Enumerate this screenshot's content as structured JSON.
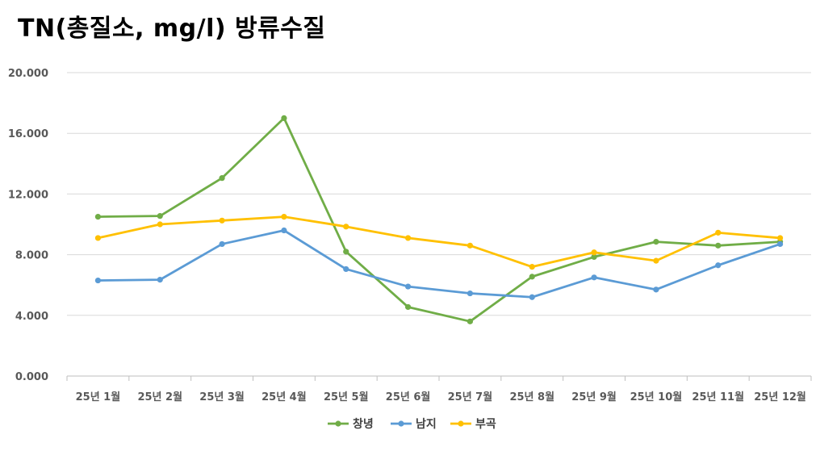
{
  "chart_data": {
    "type": "line",
    "title": "TN(총질소, mg/l) 방류수질",
    "categories": [
      "25년 1월",
      "25년 2월",
      "25년 3월",
      "25년 4월",
      "25년 5월",
      "25년 6월",
      "25년 7월",
      "25년 8월",
      "25년 9월",
      "25년 10월",
      "25년 11월",
      "25년 12월"
    ],
    "y_ticks": [
      "0.000",
      "4.000",
      "8.000",
      "12.000",
      "16.000",
      "20.000"
    ],
    "ylim": [
      0,
      20
    ],
    "grid": true,
    "legend_position": "bottom",
    "series": [
      {
        "name": "창녕",
        "color": "#70AD47",
        "values": [
          10.5,
          10.55,
          13.05,
          17.0,
          8.2,
          4.55,
          3.6,
          6.55,
          7.85,
          8.85,
          8.6,
          8.85
        ]
      },
      {
        "name": "남지",
        "color": "#5B9BD5",
        "values": [
          6.3,
          6.35,
          8.7,
          9.6,
          7.05,
          5.9,
          5.45,
          5.2,
          6.5,
          5.7,
          7.3,
          8.7
        ]
      },
      {
        "name": "부곡",
        "color": "#FFC000",
        "values": [
          9.1,
          10.0,
          10.25,
          10.5,
          9.85,
          9.1,
          8.6,
          7.2,
          8.15,
          7.6,
          9.45,
          9.1
        ]
      }
    ]
  }
}
